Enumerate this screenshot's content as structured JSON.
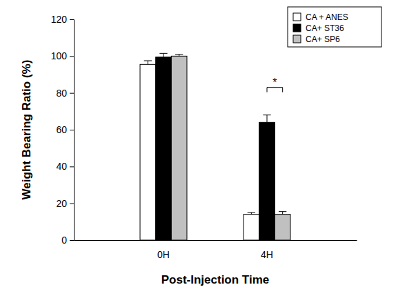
{
  "chart_data": {
    "type": "bar",
    "x_label": "Post-Injection Time",
    "y_label": "Weight Bearing Ratio (%)",
    "categories": [
      "0H",
      "4H"
    ],
    "series": [
      {
        "name": "CA + ANES",
        "color": "#ffffff",
        "values": [
          95.5,
          14
        ],
        "errors": [
          2,
          1
        ]
      },
      {
        "name": "CA+ ST36",
        "color": "#000000",
        "values": [
          99.5,
          64
        ],
        "errors": [
          2,
          4
        ]
      },
      {
        "name": "CA+ SP6",
        "color": "#c0c0c0",
        "values": [
          100,
          14
        ],
        "errors": [
          1,
          1.5
        ]
      }
    ],
    "ylim": [
      0,
      120
    ],
    "yticks": [
      0,
      20,
      40,
      60,
      80,
      100,
      120
    ],
    "legend": "upper right",
    "annotations": [
      {
        "text": "*",
        "category": 1,
        "series": [
          1,
          2
        ],
        "y": 83
      }
    ]
  }
}
